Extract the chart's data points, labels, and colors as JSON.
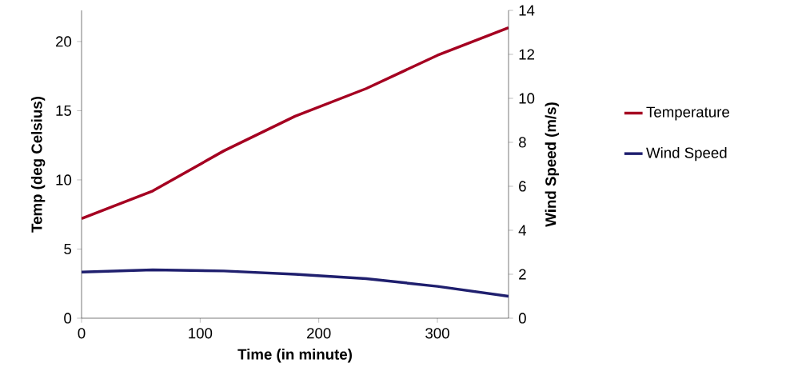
{
  "chart_data": {
    "type": "line",
    "xlabel": "Time (in minute)",
    "ylabel": "Temp (deg Celsius)",
    "y2label": "Wind Speed (m/s)",
    "x": [
      0,
      60,
      120,
      180,
      240,
      300,
      360
    ],
    "series": [
      {
        "name": "Temperature",
        "color": "#a50021",
        "values": [
          7.2,
          9.2,
          12.1,
          14.6,
          16.6,
          19.0,
          21.0
        ]
      },
      {
        "name": "Wind Speed",
        "color": "#1f1f6e",
        "axis": "y2",
        "values": [
          2.1,
          2.2,
          2.15,
          2.0,
          1.8,
          1.45,
          1.0
        ]
      }
    ],
    "xlim": [
      0,
      360
    ],
    "xticks": [
      0,
      100,
      200,
      300
    ],
    "ylim": [
      0,
      22.25
    ],
    "yticks": [
      0,
      5,
      10,
      15,
      20
    ],
    "y2lim": [
      0,
      14
    ],
    "y2ticks": [
      0,
      2,
      4,
      6,
      8,
      10,
      12,
      14
    ],
    "grid": false,
    "legend": "right",
    "marker": "none",
    "line_style": "solid"
  }
}
